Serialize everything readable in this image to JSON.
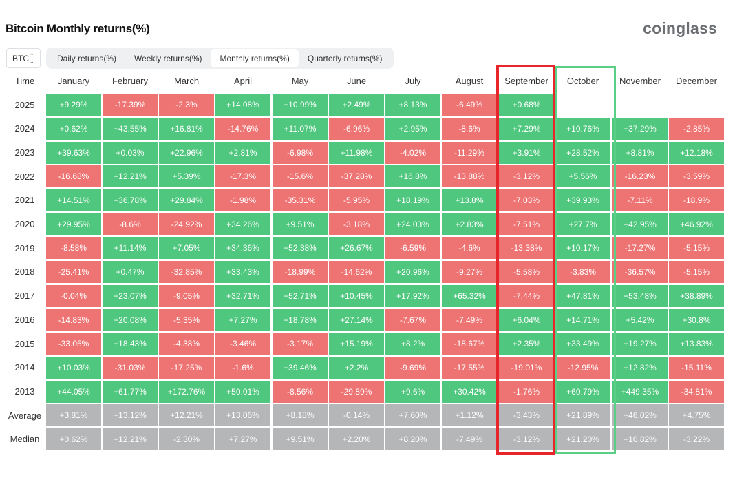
{
  "header": {
    "title": "Bitcoin Monthly returns(%)",
    "logo": "coinglass"
  },
  "controls": {
    "coin_select": "BTC",
    "tabs": [
      {
        "label": "Daily returns(%)",
        "active": false
      },
      {
        "label": "Weekly returns(%)",
        "active": false
      },
      {
        "label": "Monthly returns(%)",
        "active": true
      },
      {
        "label": "Quarterly returns(%)",
        "active": false
      }
    ]
  },
  "table": {
    "time_header": "Time",
    "months": [
      "January",
      "February",
      "March",
      "April",
      "May",
      "June",
      "July",
      "August",
      "September",
      "October",
      "November",
      "December"
    ],
    "rows": [
      {
        "label": "2025",
        "values": [
          "+9.29%",
          "-17.39%",
          "-2.3%",
          "+14.08%",
          "+10.99%",
          "+2.49%",
          "+8.13%",
          "-6.49%",
          "+0.68%",
          "",
          "",
          ""
        ]
      },
      {
        "label": "2024",
        "values": [
          "+0.62%",
          "+43.55%",
          "+16.81%",
          "-14.76%",
          "+11.07%",
          "-6.96%",
          "+2.95%",
          "-8.6%",
          "+7.29%",
          "+10.76%",
          "+37.29%",
          "-2.85%"
        ]
      },
      {
        "label": "2023",
        "values": [
          "+39.63%",
          "+0.03%",
          "+22.96%",
          "+2.81%",
          "-6.98%",
          "+11.98%",
          "-4.02%",
          "-11.29%",
          "+3.91%",
          "+28.52%",
          "+8.81%",
          "+12.18%"
        ]
      },
      {
        "label": "2022",
        "values": [
          "-16.68%",
          "+12.21%",
          "+5.39%",
          "-17.3%",
          "-15.6%",
          "-37.28%",
          "+16.8%",
          "-13.88%",
          "-3.12%",
          "+5.56%",
          "-16.23%",
          "-3.59%"
        ]
      },
      {
        "label": "2021",
        "values": [
          "+14.51%",
          "+36.78%",
          "+29.84%",
          "-1.98%",
          "-35.31%",
          "-5.95%",
          "+18.19%",
          "+13.8%",
          "-7.03%",
          "+39.93%",
          "-7.11%",
          "-18.9%"
        ]
      },
      {
        "label": "2020",
        "values": [
          "+29.95%",
          "-8.6%",
          "-24.92%",
          "+34.26%",
          "+9.51%",
          "-3.18%",
          "+24.03%",
          "+2.83%",
          "-7.51%",
          "+27.7%",
          "+42.95%",
          "+46.92%"
        ]
      },
      {
        "label": "2019",
        "values": [
          "-8.58%",
          "+11.14%",
          "+7.05%",
          "+34.36%",
          "+52.38%",
          "+26.67%",
          "-6.59%",
          "-4.6%",
          "-13.38%",
          "+10.17%",
          "-17.27%",
          "-5.15%"
        ]
      },
      {
        "label": "2018",
        "values": [
          "-25.41%",
          "+0.47%",
          "-32.85%",
          "+33.43%",
          "-18.99%",
          "-14.62%",
          "+20.96%",
          "-9.27%",
          "-5.58%",
          "-3.83%",
          "-36.57%",
          "-5.15%"
        ]
      },
      {
        "label": "2017",
        "values": [
          "-0.04%",
          "+23.07%",
          "-9.05%",
          "+32.71%",
          "+52.71%",
          "+10.45%",
          "+17.92%",
          "+65.32%",
          "-7.44%",
          "+47.81%",
          "+53.48%",
          "+38.89%"
        ]
      },
      {
        "label": "2016",
        "values": [
          "-14.83%",
          "+20.08%",
          "-5.35%",
          "+7.27%",
          "+18.78%",
          "+27.14%",
          "-7.67%",
          "-7.49%",
          "+6.04%",
          "+14.71%",
          "+5.42%",
          "+30.8%"
        ]
      },
      {
        "label": "2015",
        "values": [
          "-33.05%",
          "+18.43%",
          "-4.38%",
          "-3.46%",
          "-3.17%",
          "+15.19%",
          "+8.2%",
          "-18.67%",
          "+2.35%",
          "+33.49%",
          "+19.27%",
          "+13.83%"
        ]
      },
      {
        "label": "2014",
        "values": [
          "+10.03%",
          "-31.03%",
          "-17.25%",
          "-1.6%",
          "+39.46%",
          "+2.2%",
          "-9.69%",
          "-17.55%",
          "-19.01%",
          "-12.95%",
          "+12.82%",
          "-15.11%"
        ]
      },
      {
        "label": "2013",
        "values": [
          "+44.05%",
          "+61.77%",
          "+172.76%",
          "+50.01%",
          "-8.56%",
          "-29.89%",
          "+9.6%",
          "+30.42%",
          "-1.76%",
          "+60.79%",
          "+449.35%",
          "-34.81%"
        ]
      }
    ],
    "stats": [
      {
        "label": "Average",
        "values": [
          "+3.81%",
          "+13.12%",
          "+12.21%",
          "+13.06%",
          "+8.18%",
          "-0.14%",
          "+7.60%",
          "+1.12%",
          "-3.43%",
          "+21.89%",
          "+46.02%",
          "+4.75%"
        ]
      },
      {
        "label": "Median",
        "values": [
          "+0.62%",
          "+12.21%",
          "-2.30%",
          "+7.27%",
          "+9.51%",
          "+2.20%",
          "+8.20%",
          "-7.49%",
          "-3.12%",
          "+21.20%",
          "+10.82%",
          "-3.22%"
        ]
      }
    ],
    "highlights": {
      "red_month": "September",
      "green_month": "October"
    }
  },
  "colors": {
    "positive": "#4fc77e",
    "negative": "#ee7474",
    "stat": "#b4b6b8",
    "red_highlight": "#e8252a",
    "green_highlight": "#5ccf86"
  }
}
